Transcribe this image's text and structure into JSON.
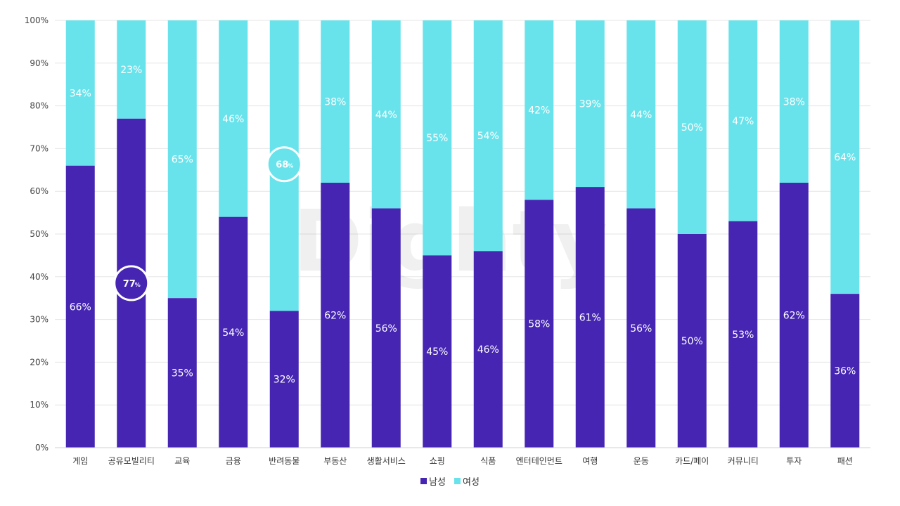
{
  "chart_data": {
    "type": "bar",
    "stacked": true,
    "categories": [
      "게임",
      "공유모빌리티",
      "교육",
      "금융",
      "반려동물",
      "부동산",
      "생활서비스",
      "쇼핑",
      "식품",
      "엔터테인먼트",
      "여행",
      "운동",
      "카드/페이",
      "커뮤니티",
      "투자",
      "패션"
    ],
    "series": [
      {
        "name": "남성",
        "color": "#4525b2",
        "values": [
          66,
          77,
          35,
          54,
          32,
          62,
          56,
          45,
          46,
          58,
          61,
          56,
          50,
          53,
          62,
          36
        ]
      },
      {
        "name": "여성",
        "color": "#69e3eb",
        "values": [
          34,
          23,
          65,
          46,
          68,
          38,
          44,
          55,
          54,
          42,
          39,
          44,
          50,
          47,
          38,
          64
        ]
      }
    ],
    "label_suffix": "%",
    "badge_suffix": "%",
    "highlights": [
      {
        "series": "남성",
        "category": "공유모빌리티",
        "value": 77
      },
      {
        "series": "여성",
        "category": "반려동물",
        "value": 68
      }
    ],
    "y_ticks": [
      "0%",
      "10%",
      "20%",
      "30%",
      "40%",
      "50%",
      "60%",
      "70%",
      "80%",
      "90%",
      "100%"
    ],
    "ylim": [
      0,
      100
    ],
    "grid": true,
    "legend_position": "bottom-center",
    "watermark": "Dighty",
    "xlabel": "",
    "ylabel": "",
    "title": ""
  }
}
